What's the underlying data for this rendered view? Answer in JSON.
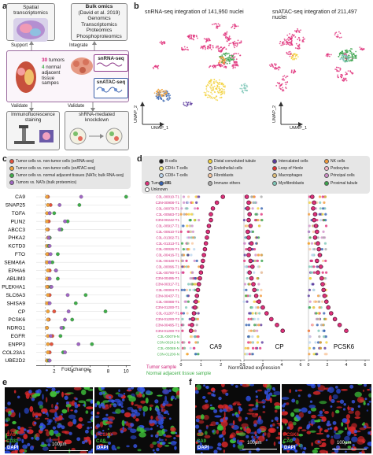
{
  "panel_a": {
    "letter": "a",
    "spatial_label": "Spatial transcriptomics",
    "bulk_title": "Bulk omics",
    "bulk_ref": "(David et al. 2019)",
    "bulk_items": [
      "Genomics",
      "Transcriptomics",
      "Proteomics",
      "Phosphoproteomics"
    ],
    "support_label": "Support",
    "integrate_label": "Integrate",
    "tumors_count": "30",
    "tumors_word": "tumors",
    "normal_count": "4",
    "normal_text": [
      "normal",
      "adjacent",
      "tissue",
      "sampes"
    ],
    "snrna_label": "snRNA-seq",
    "snatac_label": "snATAC-seq",
    "validate_label_1": "Validate",
    "validate_label_2": "Validate",
    "if_label": [
      "Immunofluorescence",
      "staining"
    ],
    "shrna_label": [
      "shRNA-mediated",
      "knockdown"
    ]
  },
  "panel_b": {
    "letter": "b",
    "title_left": "snRNA-seq integration of 141,950 nuclei",
    "title_right": "snATAC-seq integration of 211,497 nuclei",
    "axis_y": "UMAP_2",
    "axis_x": "UMAP_1"
  },
  "panel_c": {
    "letter": "c",
    "legend": [
      {
        "label": "Tumor cells vs. non-tumor cells (snRNA-seq)",
        "color": "#e5533c"
      },
      {
        "label": "Tumor cells vs. non-tumor cells (snATAC-seq)",
        "color": "#f2a33a"
      },
      {
        "label": "Tumor cells vs. normal adjacent tissues (NATs; bulk RNA-seq)",
        "color": "#3fae49"
      },
      {
        "label": "Tumors vs. NATs (bulk proteomics)",
        "color": "#a066c4"
      }
    ],
    "xlabel": "Fold change",
    "xticks": [
      "2",
      "4",
      "6",
      "8",
      "10"
    ]
  },
  "chart_data": [
    {
      "type": "scatter",
      "panel": "c",
      "xlabel": "Fold change",
      "xlim": [
        0,
        10.5
      ],
      "categories": [
        "CA9",
        "SNAP25",
        "TGFA",
        "PLIN2",
        "ABCC3",
        "PHKA2",
        "KCTD3",
        "FTO",
        "SEMA6A",
        "EPHA6",
        "ABLIM3",
        "PLEKHA1",
        "SLC6A3",
        "SHISA9",
        "CP",
        "PCSK6",
        "NDRG1",
        "EGFR",
        "ENPP3",
        "COL23A1",
        "UBE2D2"
      ],
      "series": [
        {
          "name": "Tumor cells vs. non-tumor cells (snRNA-seq)",
          "values": [
            1.3,
            1.6,
            1.5,
            1.4,
            1.3,
            1.5,
            1.4,
            1.3,
            1.2,
            1.5,
            1.3,
            1.3,
            1.5,
            1.4,
            2.0,
            1.4,
            1.2,
            1.8,
            1.7,
            1.5,
            1.2
          ]
        },
        {
          "name": "Tumor cells vs. non-tumor cells (snATAC-seq)",
          "values": [
            1.2,
            1.3,
            1.2,
            1.2,
            1.2,
            1.3,
            1.2,
            1.2,
            1.2,
            1.3,
            1.2,
            1.2,
            1.3,
            1.2,
            1.3,
            1.3,
            1.2,
            1.3,
            1.3,
            1.3,
            1.2
          ]
        },
        {
          "name": "Tumor cells vs. normal adjacent tissues (NATs; bulk RNA-seq)",
          "values": [
            10.0,
            4.8,
            2.0,
            3.5,
            2.8,
            1.5,
            1.4,
            2.4,
            1.8,
            2.2,
            2.4,
            1.6,
            5.5,
            4.4,
            7.7,
            4.0,
            3.0,
            2.7,
            6.2,
            3.0,
            1.4
          ]
        },
        {
          "name": "Tumors vs. NATs (bulk proteomics)",
          "values": [
            5.0,
            2.6,
            1.5,
            3.2,
            2.6,
            1.4,
            1.5,
            1.6,
            1.5,
            2.2,
            1.5,
            1.7,
            3.5,
            1.5,
            3.6,
            3.2,
            2.8,
            1.6,
            4.7,
            3.2,
            1.5
          ]
        }
      ]
    },
    {
      "type": "scatter",
      "panel": "d",
      "xlabel": "Normalized expression",
      "genes": [
        "CA9",
        "CP",
        "PCSK6"
      ],
      "xticks": [
        [
          "0",
          "1",
          "2",
          "3"
        ],
        [
          "0",
          "2",
          "4",
          "6"
        ],
        [
          "0",
          "2",
          "4",
          "6"
        ]
      ],
      "samples": [
        "C3L-00010-T1",
        "C3N-00908-T1",
        "C3L-00079-T1",
        "C3L-00583-T1",
        "C3N-00242-T1",
        "C3L-00917-T1",
        "C3L-00610-T1",
        "C3L-01302-T1",
        "C3L-01313-T1",
        "C3L-00026-T1",
        "C3L-00416-T1",
        "C3L-00448-T1",
        "C3L-00096-T1",
        "C3L-00790-T1",
        "C3N-00495-T1",
        "C3N-00317-T1",
        "C3L-00004-T1",
        "C3N-00437-T1",
        "C3L-00088-T1",
        "C3N-01200-T1",
        "C3L-01287-T1",
        "C3N-01200-T2",
        "C3N-00495-T1",
        "C3N-01200-T3",
        "C3L-00079-N",
        "C3N-00242-N",
        "C3L-00088-N",
        "C3N-01200-N"
      ],
      "sample_groups": [
        "Tumor sample",
        "Normal adjacent tissue sample"
      ],
      "tumor_sample_marker_values": {
        "CA9": [
          2.1,
          1.8,
          1.6,
          1.5,
          1.5,
          1.4,
          1.35,
          1.3,
          1.25,
          1.2,
          1.15,
          1.1,
          1.05,
          1.0,
          0.95,
          0.9,
          0.85,
          0.8,
          0.75,
          0.7,
          0.65,
          0.6,
          0.55,
          0.5,
          0.05,
          0.05,
          0.05,
          0.05
        ],
        "CP": [
          0.3,
          0.5,
          0.4,
          0.6,
          0.5,
          0.7,
          0.4,
          0.5,
          0.8,
          0.6,
          0.5,
          0.7,
          0.9,
          0.6,
          0.8,
          1.0,
          1.1,
          1.3,
          1.6,
          2.0,
          2.4,
          2.9,
          3.5,
          4.1,
          0.2,
          0.2,
          0.2,
          0.2
        ],
        "PCSK6": [
          0.4,
          0.6,
          0.5,
          0.7,
          0.6,
          0.8,
          0.9,
          0.7,
          1.0,
          1.1,
          1.2,
          0.9,
          1.3,
          1.0,
          1.4,
          1.5,
          1.6,
          1.7,
          1.9,
          2.1,
          2.4,
          2.8,
          3.3,
          4.0,
          0.2,
          0.2,
          0.3,
          0.2
        ]
      }
    }
  ],
  "panel_d": {
    "letter": "d",
    "legend": [
      {
        "label": "B-cells",
        "color": "#1a1a1a"
      },
      {
        "label": "Distal convoluted tubule",
        "color": "#f2d13a"
      },
      {
        "label": "Intercalated cells",
        "color": "#5b3a9e"
      },
      {
        "label": "NK cells",
        "color": "#f29a3a"
      },
      {
        "label": "CD4+ T-cells",
        "color": "#f5e96a"
      },
      {
        "label": "Endothelial cells",
        "color": "#d7cde8"
      },
      {
        "label": "Loop of Henle",
        "color": "#e3342f"
      },
      {
        "label": "Podocytes",
        "color": "#f6b5c8"
      },
      {
        "label": "CD8+ T-cells",
        "color": "#bcd6ef"
      },
      {
        "label": "Fibroblasts",
        "color": "#f9c8a0"
      },
      {
        "label": "Macrophages",
        "color": "#e2c07a"
      },
      {
        "label": "Principal cells",
        "color": "#d18fc9"
      },
      {
        "label": "Tumor cells",
        "color": "#e0317a"
      },
      {
        "label": "Unknown",
        "color": "#ffffff"
      },
      {
        "label": "DC",
        "color": "#3561b0"
      },
      {
        "label": "Immune others",
        "color": "#a9a9a9"
      },
      {
        "label": "Myofibroblasts",
        "color": "#7ec7b8"
      },
      {
        "label": "Proximal tubule",
        "color": "#3aa34b"
      }
    ],
    "gene_labels": [
      "CA9",
      "CP",
      "PCSK6"
    ],
    "xlabel": "Normalized expression",
    "group_tumor": "Tumor sample",
    "group_normal": "Normal adjacent tissue sample"
  },
  "panel_e": {
    "letter": "e",
    "scale_label": "100µm",
    "left_channels": [
      "CA9",
      "CD31",
      "DAPI"
    ],
    "right_channels": [
      "PCSK6",
      "CA9",
      "DAPI"
    ]
  },
  "panel_f": {
    "letter": "f",
    "scale_label_left": "100µm",
    "scale_label_right": "100µm",
    "left_channels": [
      "CP",
      "CA9",
      "DAPI"
    ],
    "right_channels": [
      "PCSK6",
      "CA9",
      "DAPI"
    ]
  },
  "colors": {
    "tumor_text": "#d0237a",
    "normal_text": "#3fae49",
    "snRNA_purple": "#8e3a8a",
    "snATAC_blue": "#3a5fa8",
    "dapi_blue": "#2b4bd6",
    "red_channel": "#e52a2a",
    "green_channel": "#3ec13a"
  }
}
